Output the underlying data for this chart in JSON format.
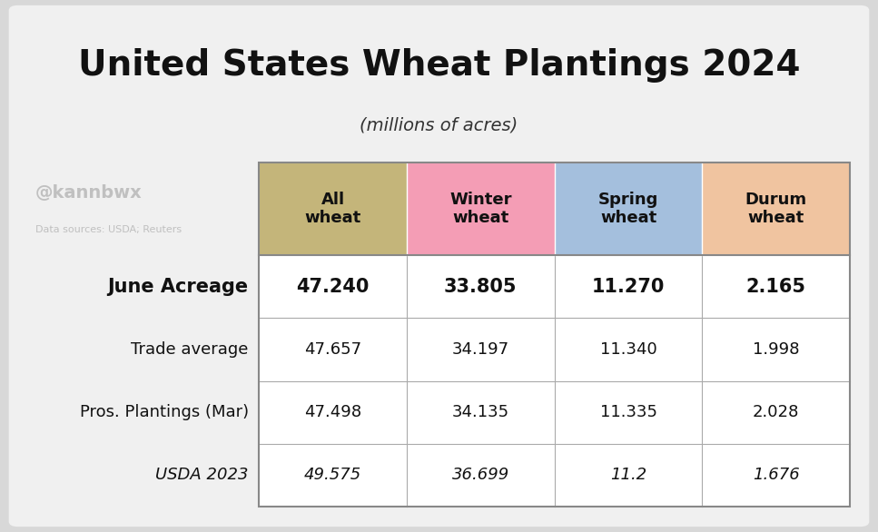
{
  "title": "United States Wheat Plantings 2024",
  "subtitle": "(millions of acres)",
  "watermark": "@kannbwx",
  "source": "Data sources: USDA; Reuters",
  "col_headers": [
    "All\nwheat",
    "Winter\nwheat",
    "Spring\nwheat",
    "Durum\nwheat"
  ],
  "col_header_colors": [
    "#c4b57a",
    "#f49db5",
    "#a4bfdd",
    "#f0c4a0"
  ],
  "rows": [
    {
      "label": "June Acreage",
      "values": [
        "47.240",
        "33.805",
        "11.270",
        "2.165"
      ],
      "bold": true,
      "italic": false
    },
    {
      "label": "Trade average",
      "values": [
        "47.657",
        "34.197",
        "11.340",
        "1.998"
      ],
      "bold": false,
      "italic": false
    },
    {
      "label": "Pros. Plantings (Mar)",
      "values": [
        "47.498",
        "34.135",
        "11.335",
        "2.028"
      ],
      "bold": false,
      "italic": false
    },
    {
      "label": "USDA 2023",
      "values": [
        "49.575",
        "36.699",
        "11.2",
        "1.676"
      ],
      "bold": false,
      "italic": true
    }
  ],
  "outer_bg_color": "#d8d8d8",
  "card_bg_color": "#f0f0f0",
  "table_bg": "#ffffff",
  "border_color": "#aaaaaa",
  "title_fontsize": 28,
  "subtitle_fontsize": 14,
  "header_fontsize": 13,
  "data_fontsize": 13,
  "watermark_fontsize": 14,
  "source_fontsize": 8
}
